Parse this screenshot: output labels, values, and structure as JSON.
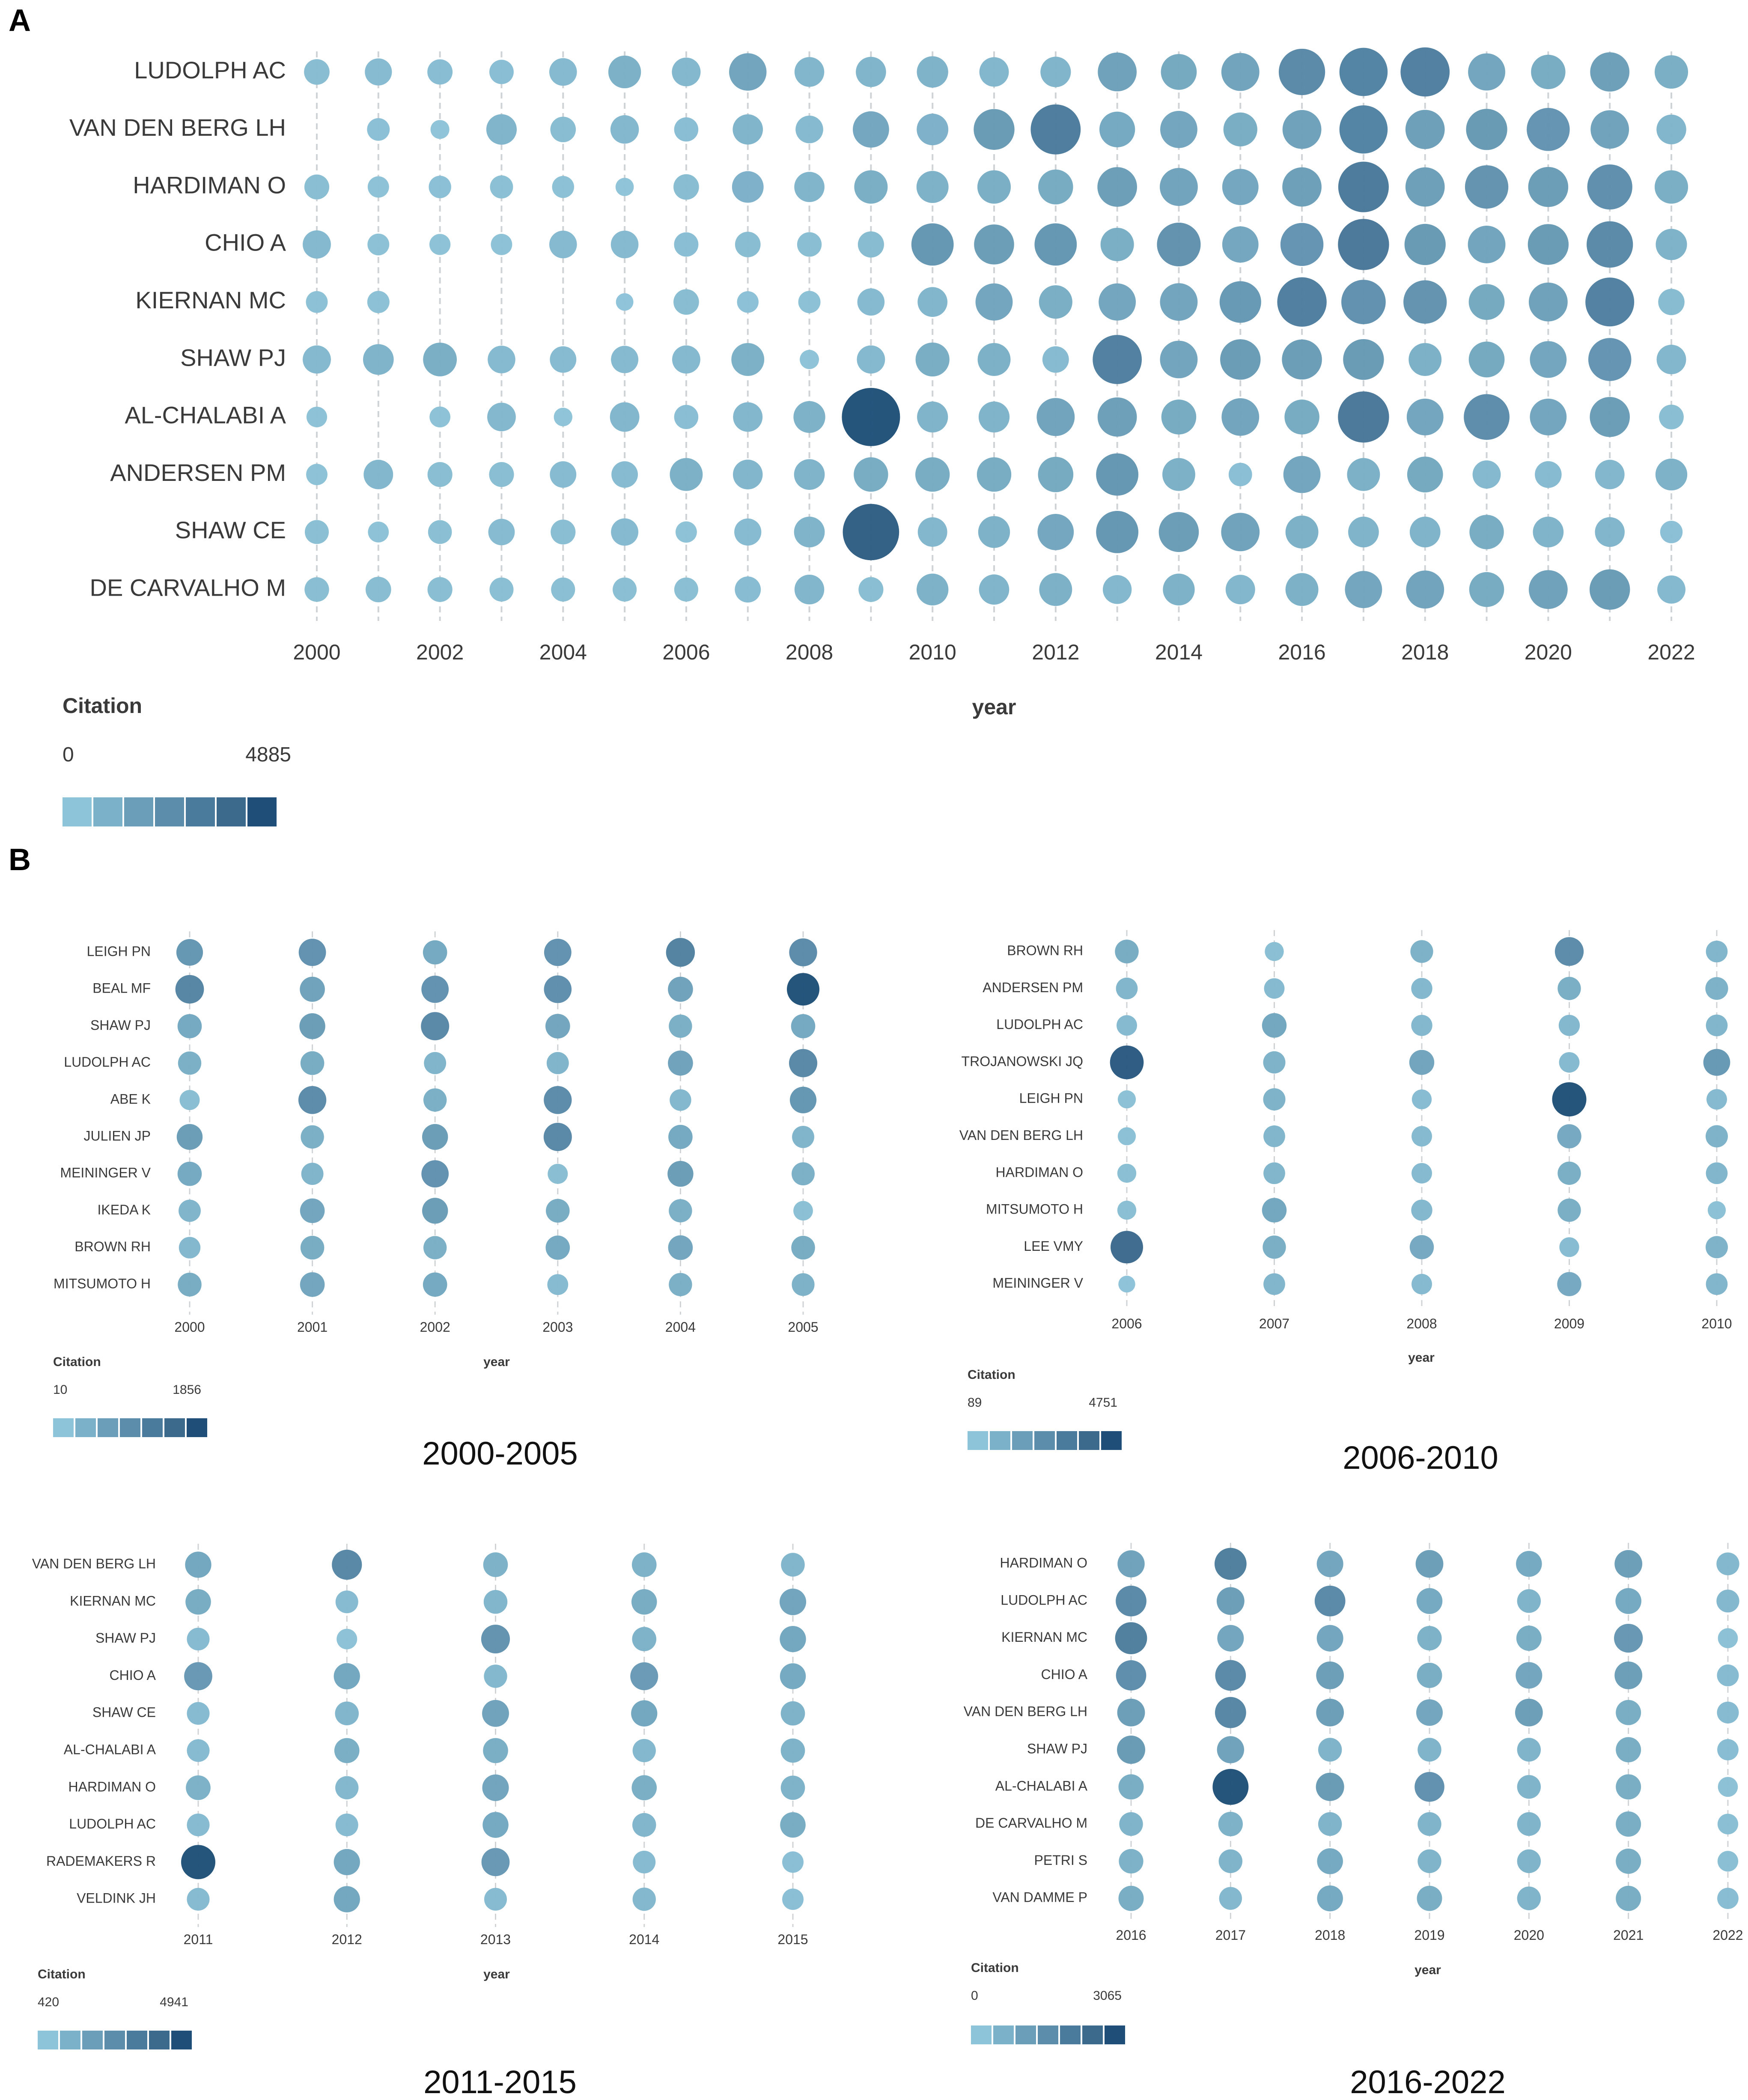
{
  "panels": {
    "A": "A",
    "B": "B"
  },
  "colors": {
    "scale": [
      "#8ec4da",
      "#7cb2c9",
      "#6b9fb9",
      "#5c8dab",
      "#4b7b9c",
      "#3c6a8d",
      "#1f4f78"
    ],
    "guide": "#cfd3d6"
  },
  "chart_data": [
    {
      "id": "A",
      "type": "scatter",
      "encoding": "bubble: size and color = citations",
      "xlabel": "year",
      "legend_title": "Citation",
      "legend_min": "0",
      "legend_max": "4885",
      "cmin": 0,
      "cmax": 4885,
      "x": [
        2000,
        2001,
        2002,
        2003,
        2004,
        2005,
        2006,
        2007,
        2008,
        2009,
        2010,
        2011,
        2012,
        2013,
        2014,
        2015,
        2016,
        2017,
        2018,
        2019,
        2020,
        2021,
        2022
      ],
      "x_ticks": [
        "2000",
        "2002",
        "2004",
        "2006",
        "2008",
        "2010",
        "2012",
        "2014",
        "2016",
        "2018",
        "2020",
        "2022"
      ],
      "series": [
        {
          "name": "LUDOLPH AC",
          "values": [
            420,
            520,
            400,
            350,
            560,
            980,
            640,
            1480,
            720,
            760,
            860,
            700,
            780,
            1650,
            1300,
            1550,
            2700,
            3000,
            3150,
            1450,
            1150,
            1700,
            1050
          ]
        },
        {
          "name": "VAN DEN BERG LH",
          "values": [
            null,
            260,
            110,
            780,
            420,
            620,
            340,
            760,
            560,
            1350,
            880,
            1900,
            3300,
            1280,
            1450,
            1100,
            1650,
            3000,
            1700,
            1950,
            2200,
            1600,
            720
          ]
        },
        {
          "name": "HARDIMAN O",
          "values": [
            380,
            200,
            250,
            280,
            230,
            90,
            420,
            880,
            760,
            1050,
            920,
            1050,
            1200,
            1750,
            1550,
            1350,
            1700,
            3400,
            1700,
            2250,
            1800,
            2500,
            1050
          ]
        },
        {
          "name": "CHIO A",
          "values": [
            600,
            220,
            190,
            200,
            560,
            560,
            350,
            420,
            360,
            460,
            2100,
            1800,
            2100,
            1050,
            2300,
            1350,
            2200,
            3500,
            1950,
            1500,
            1900,
            2700,
            850
          ]
        },
        {
          "name": "KIERNAN MC",
          "values": [
            220,
            240,
            null,
            null,
            null,
            70,
            420,
            210,
            240,
            530,
            730,
            1450,
            1050,
            1450,
            1500,
            2000,
            3200,
            2400,
            2250,
            1300,
            1650,
            3100,
            470
          ]
        },
        {
          "name": "SHAW PJ",
          "values": [
            600,
            800,
            1080,
            560,
            480,
            540,
            600,
            1000,
            120,
            600,
            1100,
            1000,
            480,
            3150,
            1500,
            1850,
            1800,
            1900,
            1000,
            1300,
            1400,
            2200,
            700
          ]
        },
        {
          "name": "AL-CHALABI A",
          "values": [
            170,
            null,
            180,
            630,
            100,
            700,
            340,
            700,
            900,
            4885,
            820,
            820,
            1550,
            1700,
            1200,
            1500,
            1200,
            3500,
            1400,
            2600,
            1400,
            1800,
            370
          ]
        },
        {
          "name": "ANDERSEN PM",
          "values": [
            200,
            700,
            380,
            380,
            480,
            480,
            1000,
            720,
            800,
            1150,
            1150,
            1150,
            1250,
            2100,
            1000,
            300,
            1450,
            1000,
            1300,
            600,
            500,
            700,
            900
          ]
        },
        {
          "name": "SHAW CE",
          "values": [
            330,
            180,
            320,
            480,
            380,
            540,
            200,
            520,
            800,
            4500,
            700,
            900,
            1350,
            2100,
            1800,
            1600,
            1000,
            800,
            800,
            1150,
            800,
            720,
            250
          ]
        },
        {
          "name": "DE CARVALHO M",
          "values": [
            360,
            420,
            380,
            330,
            330,
            330,
            330,
            450,
            720,
            380,
            900,
            760,
            1000,
            650,
            900,
            700,
            1000,
            1450,
            1550,
            1200,
            1650,
            1850,
            600
          ]
        }
      ]
    },
    {
      "id": "B1",
      "type": "scatter",
      "period": "2000-2005",
      "xlabel": "year",
      "legend_title": "Citation",
      "legend_min": "10",
      "legend_max": "1856",
      "cmin": 10,
      "cmax": 1856,
      "x": [
        2000,
        2001,
        2002,
        2003,
        2004,
        2005
      ],
      "x_ticks": [
        "2000",
        "2001",
        "2002",
        "2003",
        "2004",
        "2005"
      ],
      "series": [
        {
          "name": "LEIGH PN",
          "values": [
            800,
            900,
            500,
            900,
            1150,
            1000
          ]
        },
        {
          "name": "BEAL MF",
          "values": [
            1100,
            600,
            900,
            950,
            600,
            1856
          ]
        },
        {
          "name": "SHAW PJ",
          "values": [
            500,
            700,
            1050,
            550,
            400,
            500
          ]
        },
        {
          "name": "LUDOLPH AC",
          "values": [
            400,
            450,
            300,
            300,
            600,
            1050
          ]
        },
        {
          "name": "ABE K",
          "values": [
            150,
            1000,
            400,
            1000,
            250,
            800
          ]
        },
        {
          "name": "JULIEN JP",
          "values": [
            700,
            400,
            700,
            1050,
            500,
            300
          ]
        },
        {
          "name": "MEININGER V",
          "values": [
            500,
            300,
            900,
            150,
            700,
            380
          ]
        },
        {
          "name": "IKEDA K",
          "values": [
            300,
            550,
            700,
            450,
            400,
            120
          ]
        },
        {
          "name": "BROWN RH",
          "values": [
            250,
            450,
            400,
            500,
            550,
            450
          ]
        },
        {
          "name": "MITSUMOTO H",
          "values": [
            450,
            550,
            500,
            200,
            400,
            350
          ]
        }
      ]
    },
    {
      "id": "B2",
      "type": "scatter",
      "period": "2006-2010",
      "xlabel": "year",
      "legend_title": "Citation",
      "legend_min": "89",
      "legend_max": "4751",
      "cmin": 89,
      "cmax": 4751,
      "x": [
        2006,
        2007,
        2008,
        2009,
        2010
      ],
      "x_ticks": [
        "2006",
        "2007",
        "2008",
        "2009",
        "2010"
      ],
      "series": [
        {
          "name": "BROWN RH",
          "values": [
            1200,
            400,
            1000,
            2600,
            800
          ]
        },
        {
          "name": "ANDERSEN PM",
          "values": [
            800,
            600,
            700,
            1100,
            1000
          ]
        },
        {
          "name": "LUDOLPH AC",
          "values": [
            600,
            1400,
            700,
            700,
            800
          ]
        },
        {
          "name": "TROJANOWSKI JQ",
          "values": [
            4500,
            900,
            1500,
            600,
            2000
          ]
        },
        {
          "name": "LEIGH PN",
          "values": [
            300,
            900,
            500,
            4751,
            600
          ]
        },
        {
          "name": "VAN DEN BERG LH",
          "values": [
            300,
            800,
            600,
            1300,
            900
          ]
        },
        {
          "name": "HARDIMAN O",
          "values": [
            400,
            800,
            600,
            1100,
            800
          ]
        },
        {
          "name": "MITSUMOTO H",
          "values": [
            400,
            1400,
            700,
            1100,
            300
          ]
        },
        {
          "name": "LEE VMY",
          "values": [
            4000,
            1100,
            1300,
            500,
            900
          ]
        },
        {
          "name": "MEININGER V",
          "values": [
            200,
            800,
            600,
            1300,
            800
          ]
        }
      ]
    },
    {
      "id": "B3",
      "type": "scatter",
      "period": "2011-2015",
      "xlabel": "year",
      "legend_title": "Citation",
      "legend_min": "420",
      "legend_max": "4941",
      "cmin": 420,
      "cmax": 4941,
      "x": [
        2011,
        2012,
        2013,
        2014,
        2015
      ],
      "x_ticks": [
        "2011",
        "2012",
        "2013",
        "2014",
        "2015"
      ],
      "series": [
        {
          "name": "VAN DEN BERG LH",
          "values": [
            1700,
            3000,
            1300,
            1300,
            1100
          ]
        },
        {
          "name": "KIERNAN MC",
          "values": [
            1500,
            900,
            1100,
            1500,
            1800
          ]
        },
        {
          "name": "SHAW PJ",
          "values": [
            900,
            600,
            2500,
            1200,
            1700
          ]
        },
        {
          "name": "CHIO A",
          "values": [
            2300,
            1700,
            1000,
            2200,
            1600
          ]
        },
        {
          "name": "SHAW CE",
          "values": [
            900,
            1100,
            1900,
            1700,
            1200
          ]
        },
        {
          "name": "AL-CHALABI A",
          "values": [
            900,
            1400,
            1400,
            1000,
            1200
          ]
        },
        {
          "name": "HARDIMAN O",
          "values": [
            1300,
            1000,
            1800,
            1400,
            1200
          ]
        },
        {
          "name": "LUDOLPH AC",
          "values": [
            900,
            900,
            1600,
            1100,
            1500
          ]
        },
        {
          "name": "RADEMAKERS R",
          "values": [
            4941,
            1700,
            2300,
            900,
            700
          ]
        },
        {
          "name": "VELDINK JH",
          "values": [
            900,
            1700,
            900,
            1000,
            700
          ]
        }
      ]
    },
    {
      "id": "B4",
      "type": "scatter",
      "period": "2016-2022",
      "xlabel": "year",
      "legend_title": "Citation",
      "legend_min": "0",
      "legend_max": "3065",
      "cmin": 0,
      "cmax": 3065,
      "x": [
        2016,
        2017,
        2018,
        2019,
        2020,
        2021,
        2022
      ],
      "x_ticks": [
        "2016",
        "2017",
        "2018",
        "2019",
        "2020",
        "2021",
        "2022"
      ],
      "series": [
        {
          "name": "HARDIMAN O",
          "values": [
            1000,
            2000,
            900,
            1100,
            800,
            1100,
            400
          ]
        },
        {
          "name": "LUDOLPH AC",
          "values": [
            1700,
            1100,
            1700,
            800,
            500,
            800,
            400
          ]
        },
        {
          "name": "KIERNAN MC",
          "values": [
            2000,
            900,
            900,
            600,
            700,
            1300,
            150
          ]
        },
        {
          "name": "CHIO A",
          "values": [
            1600,
            1700,
            1100,
            700,
            900,
            1100,
            300
          ]
        },
        {
          "name": "VAN DEN BERG LH",
          "values": [
            1100,
            1800,
            1100,
            900,
            1100,
            700,
            300
          ]
        },
        {
          "name": "SHAW PJ",
          "values": [
            1200,
            1000,
            500,
            500,
            500,
            700,
            250
          ]
        },
        {
          "name": "AL-CHALABI A",
          "values": [
            700,
            3065,
            1200,
            1500,
            500,
            700,
            150
          ]
        },
        {
          "name": "DE CARVALHO M",
          "values": [
            500,
            600,
            500,
            500,
            500,
            700,
            200
          ]
        },
        {
          "name": "PETRI S",
          "values": [
            600,
            500,
            800,
            500,
            500,
            700,
            200
          ]
        },
        {
          "name": "VAN DAMME P",
          "values": [
            700,
            400,
            800,
            700,
            500,
            700,
            250
          ]
        }
      ]
    }
  ]
}
